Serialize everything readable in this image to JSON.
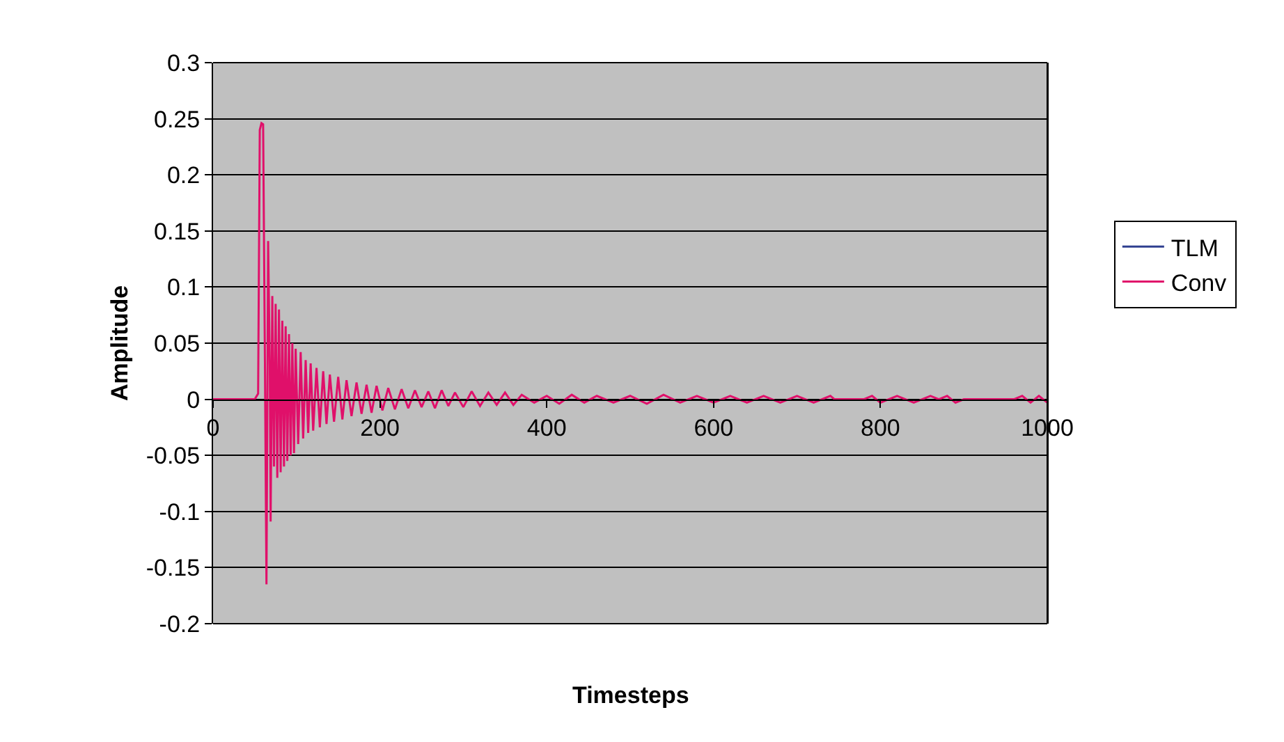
{
  "chart_data": {
    "type": "line",
    "xlabel": "Timesteps",
    "ylabel": "Amplitude",
    "xlim": [
      0,
      1000
    ],
    "xticks": [
      0,
      200,
      400,
      600,
      800,
      1000
    ],
    "ylim": [
      -0.2,
      0.3
    ],
    "yticks": [
      -0.2,
      -0.15,
      -0.1,
      -0.05,
      0,
      0.05,
      0.1,
      0.15,
      0.2,
      0.25,
      0.3
    ],
    "grid": "y",
    "legend": "right",
    "marker": "none",
    "line_style": "solid",
    "series": [
      {
        "name": "TLM",
        "color": "#2f3f8f"
      },
      {
        "name": "Conv",
        "color": "#e0106a",
        "x": [
          0,
          50,
          54,
          56,
          58,
          60,
          62,
          64,
          66,
          68,
          69,
          71,
          73,
          75,
          77,
          79,
          81,
          83,
          85,
          87,
          89,
          91,
          93,
          95,
          97,
          99,
          102,
          105,
          108,
          111,
          114,
          117,
          120,
          124,
          128,
          132,
          136,
          140,
          145,
          150,
          155,
          160,
          166,
          172,
          178,
          184,
          190,
          196,
          203,
          210,
          218,
          226,
          234,
          242,
          250,
          258,
          266,
          274,
          282,
          290,
          300,
          310,
          320,
          330,
          340,
          350,
          360,
          370,
          385,
          400,
          415,
          430,
          445,
          460,
          480,
          500,
          520,
          540,
          560,
          580,
          600,
          620,
          640,
          660,
          680,
          700,
          720,
          740,
          745,
          780,
          790,
          800,
          820,
          840,
          860,
          870,
          880,
          890,
          900,
          960,
          970,
          980,
          990,
          1000
        ],
        "values": [
          0,
          0,
          0.005,
          0.24,
          0.246,
          0.245,
          0.05,
          -0.165,
          0.141,
          0.03,
          -0.109,
          0.092,
          -0.06,
          0.085,
          -0.07,
          0.08,
          -0.065,
          0.07,
          -0.06,
          0.065,
          -0.055,
          0.058,
          -0.05,
          0.05,
          -0.048,
          0.045,
          -0.04,
          0.042,
          -0.035,
          0.035,
          -0.03,
          0.032,
          -0.028,
          0.028,
          -0.025,
          0.025,
          -0.022,
          0.022,
          -0.02,
          0.02,
          -0.018,
          0.017,
          -0.015,
          0.015,
          -0.013,
          0.013,
          -0.012,
          0.012,
          -0.01,
          0.01,
          -0.009,
          0.009,
          -0.008,
          0.008,
          -0.007,
          0.007,
          -0.008,
          0.008,
          -0.006,
          0.006,
          -0.007,
          0.007,
          -0.006,
          0.006,
          -0.005,
          0.006,
          -0.005,
          0.004,
          -0.003,
          0.003,
          -0.004,
          0.004,
          -0.003,
          0.003,
          -0.003,
          0.003,
          -0.004,
          0.004,
          -0.003,
          0.003,
          -0.003,
          0.003,
          -0.003,
          0.003,
          -0.003,
          0.003,
          -0.003,
          0.003,
          0,
          0,
          0.003,
          -0.003,
          0.003,
          -0.003,
          0.003,
          0,
          0.003,
          -0.003,
          0,
          0,
          0.003,
          -0.003,
          0.003,
          -0.003
        ]
      }
    ]
  }
}
